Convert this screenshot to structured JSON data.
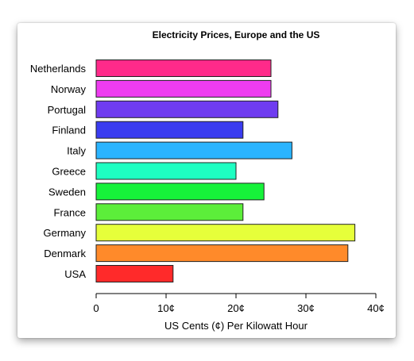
{
  "chart_data": {
    "type": "bar",
    "orientation": "horizontal",
    "title": "Electricity Prices, Europe and the US",
    "xlabel": "US Cents (¢) Per Kilowatt Hour",
    "ylabel": "",
    "xlim": [
      0,
      40
    ],
    "x_ticks": [
      0,
      10,
      20,
      30,
      40
    ],
    "x_tick_labels": [
      "0",
      "10¢",
      "20¢",
      "30¢",
      "40¢"
    ],
    "categories": [
      "Netherlands",
      "Norway",
      "Portugal",
      "Finland",
      "Italy",
      "Greece",
      "Sweden",
      "France",
      "Germany",
      "Denmark",
      "USA"
    ],
    "values": [
      25,
      25,
      26,
      21,
      28,
      20,
      24,
      21,
      37,
      36,
      11
    ],
    "colors": [
      "#ff2a8a",
      "#ee3cf0",
      "#6f3cf0",
      "#3a3cf0",
      "#2ab4ff",
      "#1effc2",
      "#16f23a",
      "#5cee3a",
      "#e6ff3a",
      "#ff8a2a",
      "#ff2a2a"
    ],
    "grid": false,
    "legend": "none"
  }
}
